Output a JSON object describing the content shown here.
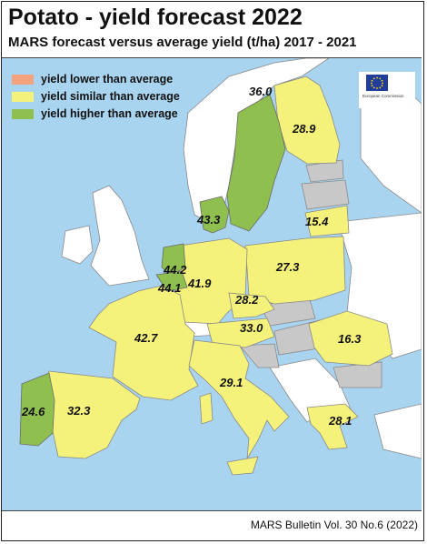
{
  "title": "Potato - yield forecast 2022",
  "subtitle": "MARS forecast versus average yield (t/ha) 2017 - 2021",
  "legend": [
    {
      "label": "yield lower than average",
      "color": "#f5a37e"
    },
    {
      "label": "yield similar than average",
      "color": "#f4f27a"
    },
    {
      "label": "yield higher than average",
      "color": "#8fbf4f"
    }
  ],
  "logo_text": "European Commission",
  "regions": [
    {
      "name": "Finland",
      "value": "28.9",
      "category": "similar"
    },
    {
      "name": "Sweden",
      "value": "36.0",
      "category": "higher"
    },
    {
      "name": "Denmark",
      "value": "43.3",
      "category": "higher"
    },
    {
      "name": "Lithuania",
      "value": "15.4",
      "category": "similar"
    },
    {
      "name": "Netherlands",
      "value": "44.2",
      "category": "higher"
    },
    {
      "name": "Belgium",
      "value": "44.1",
      "category": "higher"
    },
    {
      "name": "Germany",
      "value": "41.9",
      "category": "similar"
    },
    {
      "name": "Poland",
      "value": "27.3",
      "category": "similar"
    },
    {
      "name": "Czechia",
      "value": "28.2",
      "category": "similar"
    },
    {
      "name": "France",
      "value": "42.7",
      "category": "similar"
    },
    {
      "name": "Austria",
      "value": "33.0",
      "category": "similar"
    },
    {
      "name": "Romania",
      "value": "16.3",
      "category": "similar"
    },
    {
      "name": "Italy",
      "value": "29.1",
      "category": "similar"
    },
    {
      "name": "Portugal",
      "value": "24.6",
      "category": "higher"
    },
    {
      "name": "Spain",
      "value": "32.3",
      "category": "similar"
    },
    {
      "name": "Greece",
      "value": "28.1",
      "category": "similar"
    }
  ],
  "colors": {
    "sea": "#a9d4ef",
    "similar": "#f4f27a",
    "higher": "#8fbf4f",
    "no_data_eu": "#c8c8c8",
    "non_eu": "#ffffff"
  },
  "footer": "MARS Bulletin Vol. 30 No.6 (2022)"
}
